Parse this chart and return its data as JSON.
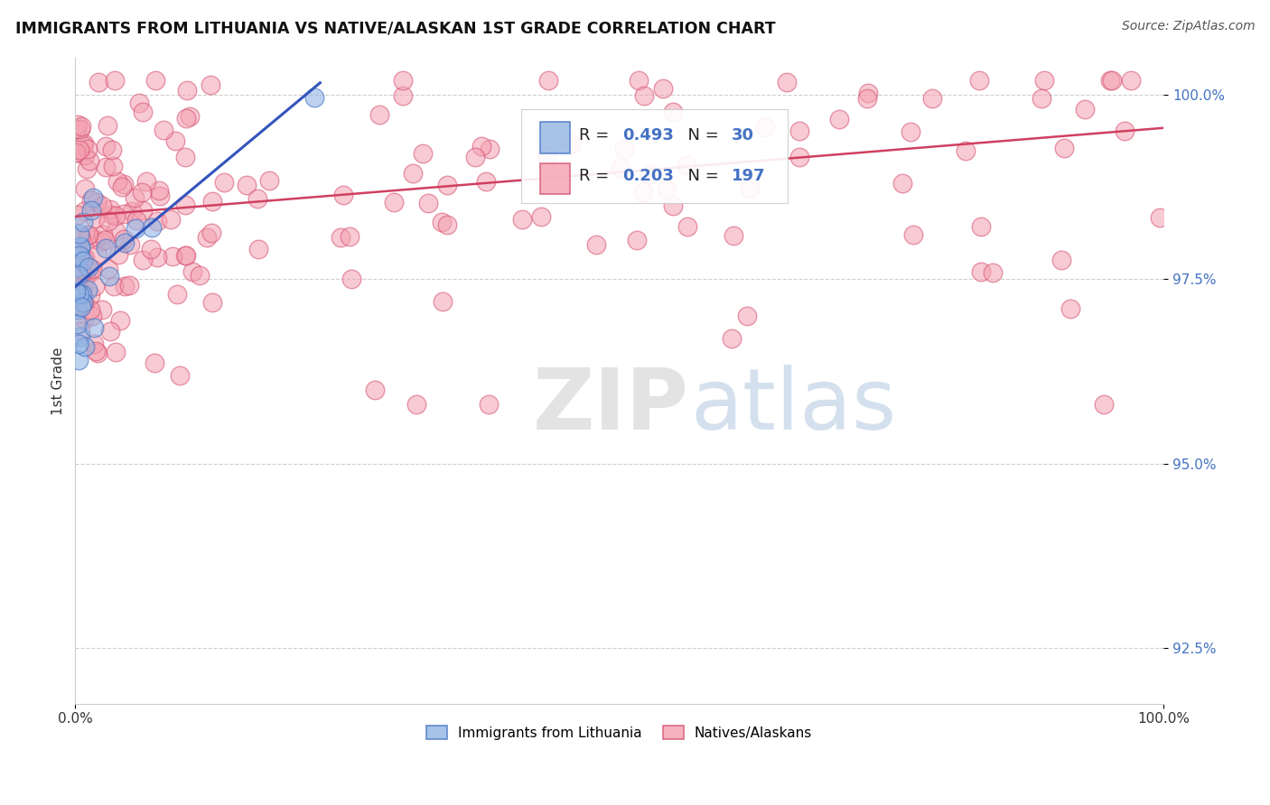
{
  "title": "IMMIGRANTS FROM LITHUANIA VS NATIVE/ALASKAN 1ST GRADE CORRELATION CHART",
  "source_text": "Source: ZipAtlas.com",
  "ylabel": "1st Grade",
  "watermark_zip": "ZIP",
  "watermark_atlas": "atlas",
  "legend_blue_label": "Immigrants from Lithuania",
  "legend_pink_label": "Natives/Alaskans",
  "blue_R": 0.493,
  "blue_N": 30,
  "pink_R": 0.203,
  "pink_N": 197,
  "xmin": 0.0,
  "xmax": 1.0,
  "ymin": 0.9175,
  "ymax": 1.005,
  "ytick_vals": [
    0.925,
    0.95,
    0.975,
    1.0
  ],
  "ytick_labels": [
    "92.5%",
    "95.0%",
    "97.5%",
    "100.0%"
  ],
  "blue_fill": "#92B4E3",
  "blue_edge": "#4472C4",
  "pink_fill": "#F4A0B0",
  "pink_edge": "#D45070",
  "blue_line": "#3355BB",
  "pink_line": "#D04060",
  "grid_color": "#BBBBBB",
  "tick_color": "#4472C4",
  "text_color": "#333333",
  "legend_R_color": "#000000",
  "legend_N_color": "#4472C4"
}
